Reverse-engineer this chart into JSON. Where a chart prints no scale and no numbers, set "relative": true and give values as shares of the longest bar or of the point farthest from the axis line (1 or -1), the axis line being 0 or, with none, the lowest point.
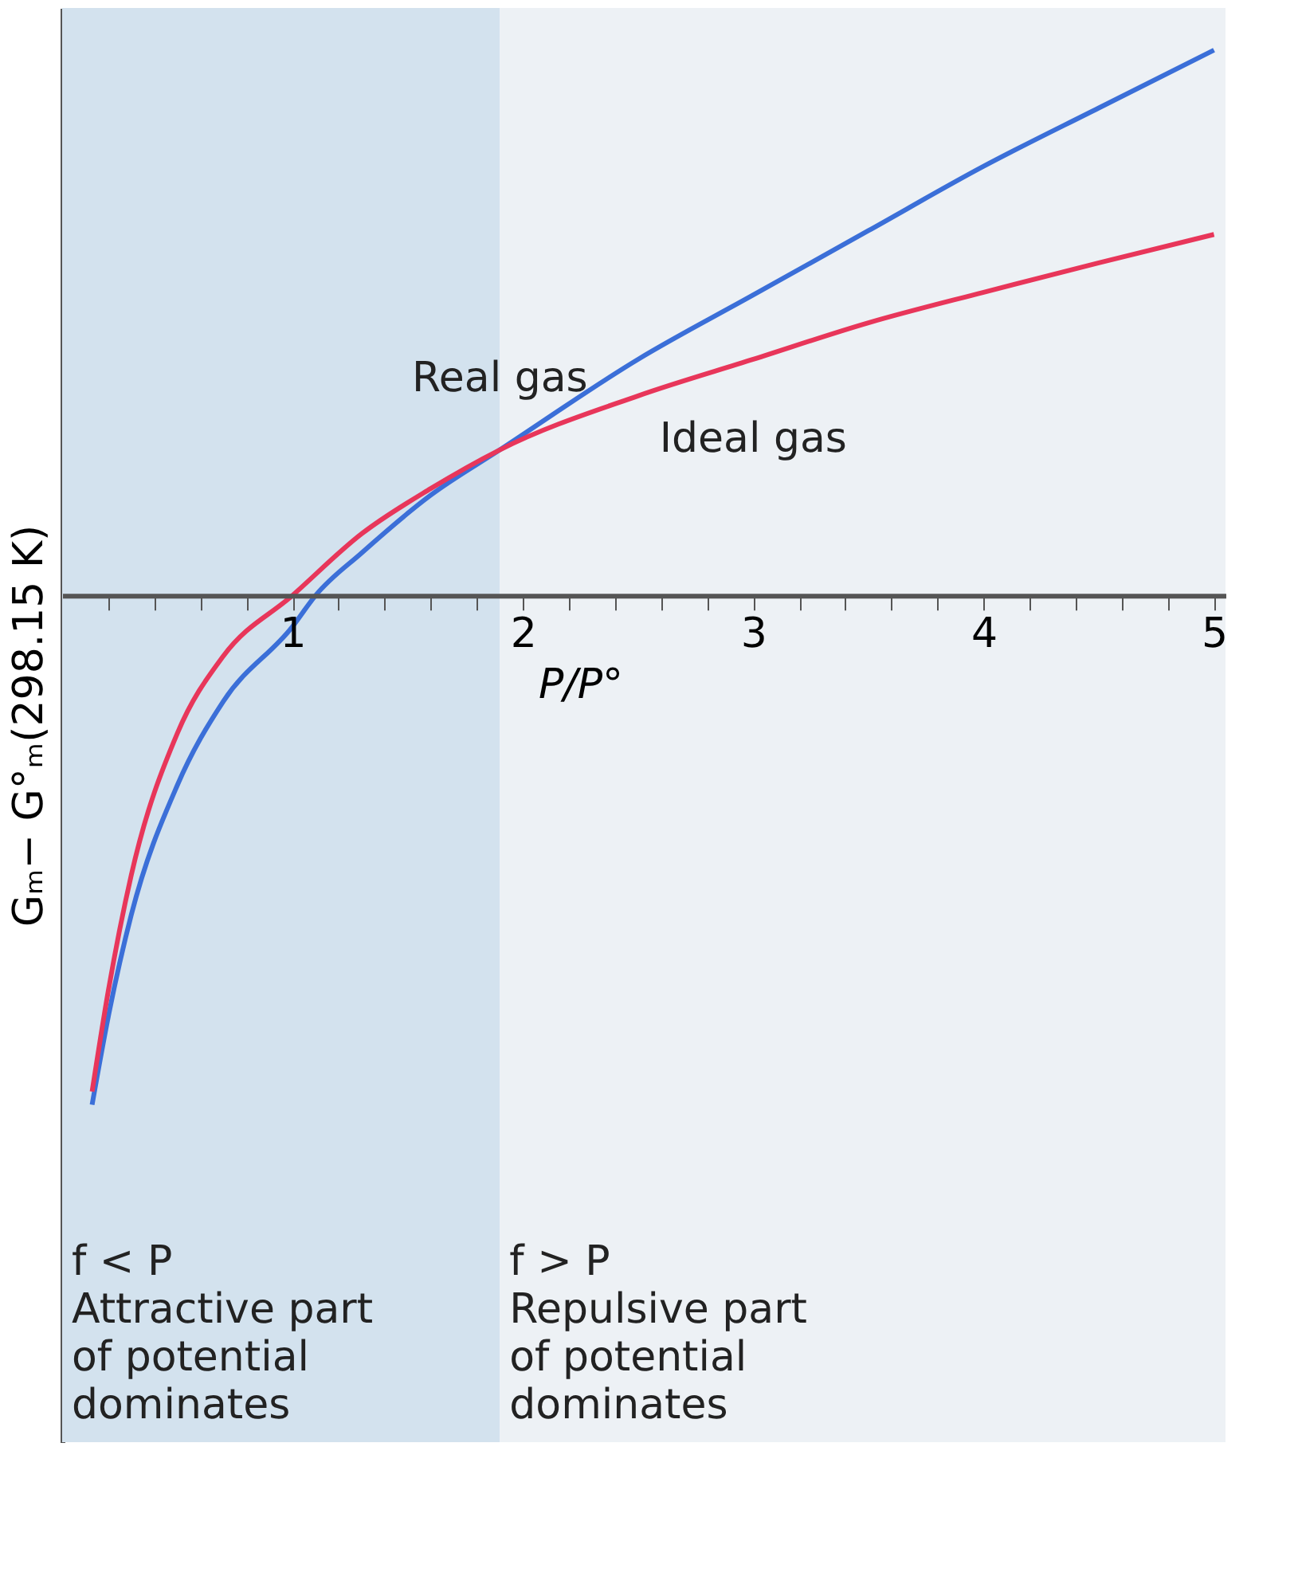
{
  "chart_data": {
    "type": "line",
    "relative": true,
    "xlabel": "P/P°",
    "ylabel": "Gₘ− G°ₘ(298.15 K)",
    "xlim": [
      0,
      5.05
    ],
    "xticks": [
      {
        "value": 0.2,
        "label": null
      },
      {
        "value": 0.4,
        "label": null
      },
      {
        "value": 0.6,
        "label": null
      },
      {
        "value": 0.8,
        "label": null
      },
      1,
      {
        "value": 1.2,
        "label": null
      },
      {
        "value": 1.4,
        "label": null
      },
      {
        "value": 1.6,
        "label": null
      },
      {
        "value": 1.8,
        "label": null
      },
      2,
      {
        "value": 2.2,
        "label": null
      },
      {
        "value": 2.4,
        "label": null
      },
      {
        "value": 2.6,
        "label": null
      },
      {
        "value": 2.8,
        "label": null
      },
      3,
      {
        "value": 3.2,
        "label": null
      },
      {
        "value": 3.4,
        "label": null
      },
      {
        "value": 3.6,
        "label": null
      },
      {
        "value": 3.8,
        "label": null
      },
      4,
      {
        "value": 4.2,
        "label": null
      },
      {
        "value": 4.4,
        "label": null
      },
      {
        "value": 4.6,
        "label": null
      },
      {
        "value": 4.8,
        "label": null
      },
      5
    ],
    "series": [
      {
        "name": "Real gas",
        "color": "#3b6fd8",
        "x": [
          0.13,
          0.2,
          0.3,
          0.5,
          0.7,
          1.0,
          1.1,
          1.3,
          1.6,
          1.9,
          2.5,
          3,
          3.5,
          4,
          4.5,
          5
        ],
        "values": [
          -0.934,
          -0.773,
          -0.586,
          -0.348,
          -0.194,
          -0.057,
          0,
          0.078,
          0.184,
          0.267,
          0.433,
          0.551,
          0.669,
          0.787,
          0.894,
          1
        ]
      },
      {
        "name": "Ideal gas",
        "color": "#e8365a",
        "x": [
          0.13,
          0.2,
          0.3,
          0.5,
          0.7,
          1.0,
          1.3,
          1.6,
          1.9,
          2.5,
          3,
          3.5,
          4,
          4.5,
          5
        ],
        "values": [
          -0.91,
          -0.726,
          -0.513,
          -0.253,
          -0.111,
          0,
          0.113,
          0.196,
          0.267,
          0.366,
          0.433,
          0.5,
          0.556,
          0.61,
          0.662
        ]
      }
    ],
    "bands": [
      {
        "axis": "x",
        "from": 0,
        "to": 1.9,
        "color": "#d3e2ee",
        "label": "f < P\nAttractive part\nof potential\ndominates"
      },
      {
        "axis": "x",
        "from": 1.9,
        "to": 5.05,
        "color": "#edf1f5",
        "label": "f > P\nRepulsive part\nof potential\ndominates"
      }
    ],
    "grid": false,
    "legend": false,
    "marker": "none",
    "line_style": "solid"
  }
}
